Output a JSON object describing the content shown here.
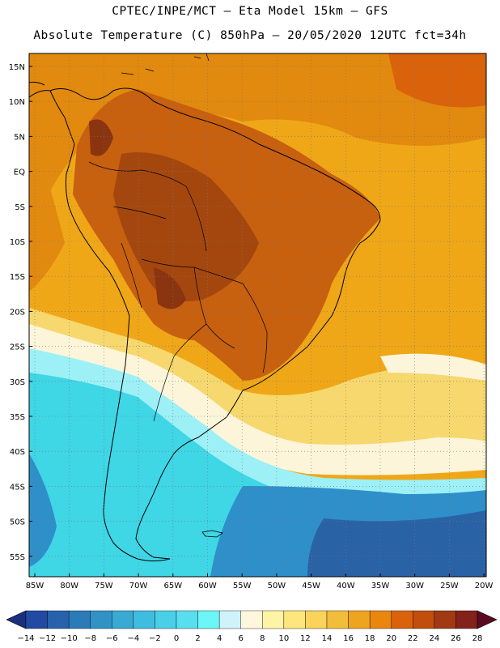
{
  "header": {
    "line1": "CPTEC/INPE/MCT –  Eta Model 15km – GFS",
    "line2": "Absolute Temperature (C) 850hPa – 20/05/2020 12UTC fct=34h"
  },
  "map": {
    "lat_labels": [
      "15N",
      "10N",
      "5N",
      "EQ",
      "5S",
      "10S",
      "15S",
      "20S",
      "25S",
      "30S",
      "35S",
      "40S",
      "45S",
      "50S",
      "55S"
    ],
    "lon_labels": [
      "85W",
      "80W",
      "75W",
      "70W",
      "65W",
      "60W",
      "55W",
      "50W",
      "45W",
      "40W",
      "35W",
      "30W",
      "25W",
      "20W"
    ],
    "colors": {
      "very_warm": "#a4470f",
      "warm": "#c7600f",
      "orange": "#e2890f",
      "amber": "#efa718",
      "yellow": "#f6d86e",
      "cream": "#fdf5d9",
      "cyan_light": "#9df0f6",
      "cyan": "#3fd6e6",
      "blue_mid": "#2f8fc9",
      "blue_dark": "#2a62a6",
      "land_outline": "#000000",
      "grid": "#999999"
    }
  },
  "colorbar": {
    "labels": [
      "-14",
      "-12",
      "-10",
      "-8",
      "-6",
      "-4",
      "-2",
      "0",
      "2",
      "4",
      "6",
      "8",
      "10",
      "12",
      "14",
      "16",
      "18",
      "20",
      "22",
      "24",
      "26",
      "28"
    ],
    "colors": [
      "#1c2f7e",
      "#224aa2",
      "#2862ac",
      "#2c7bb9",
      "#3192c6",
      "#3aa9d3",
      "#3fbde0",
      "#49cfe8",
      "#58dfef",
      "#6cf6f8",
      "#cff3fa",
      "#fff7dc",
      "#fff4a6",
      "#fde67c",
      "#fad35b",
      "#f2bd3a",
      "#eea41e",
      "#e9860e",
      "#d9620b",
      "#c24e0e",
      "#a13a12",
      "#83221a",
      "#5a0b22"
    ]
  }
}
